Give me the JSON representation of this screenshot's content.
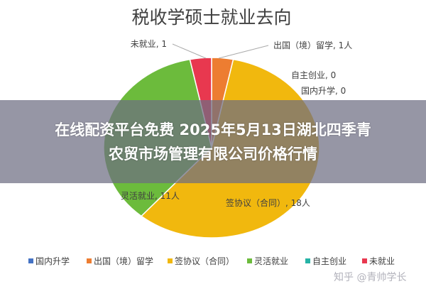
{
  "chart_data": {
    "type": "pie",
    "title": "税收学硕士就业去向",
    "slices": [
      {
        "name": "出国（境）留学",
        "value": 1,
        "label": "出国（境）留学, 1人",
        "color": "#ED7D31"
      },
      {
        "name": "自主创业",
        "value": 0,
        "label": "自主创业, 0",
        "color": "#26B3A6"
      },
      {
        "name": "国内升学",
        "value": 0,
        "label": "国内升学, 0",
        "color": "#4472C4"
      },
      {
        "name": "签协议（合同）",
        "value": 18,
        "label": "签协议（合同）, 18人",
        "color": "#F1B80E"
      },
      {
        "name": "灵活就业",
        "value": 11,
        "label": "灵活就业, 11人",
        "color": "#6CBB3C"
      },
      {
        "name": "未就业",
        "value": 1,
        "label": "未就业, 1",
        "color": "#E8384F"
      }
    ],
    "legend": [
      "国内升学",
      "出国（境）留学",
      "签协议（合同）",
      "灵活就业",
      "自主创业",
      "未就业"
    ],
    "legend_placement": "bottom"
  },
  "banner": {
    "line1": "在线配资平台免费 2025年5月13日湖北四季青",
    "line2": "农贸市场管理有限公司价格行情"
  },
  "watermark": "知乎 @青帅学长"
}
